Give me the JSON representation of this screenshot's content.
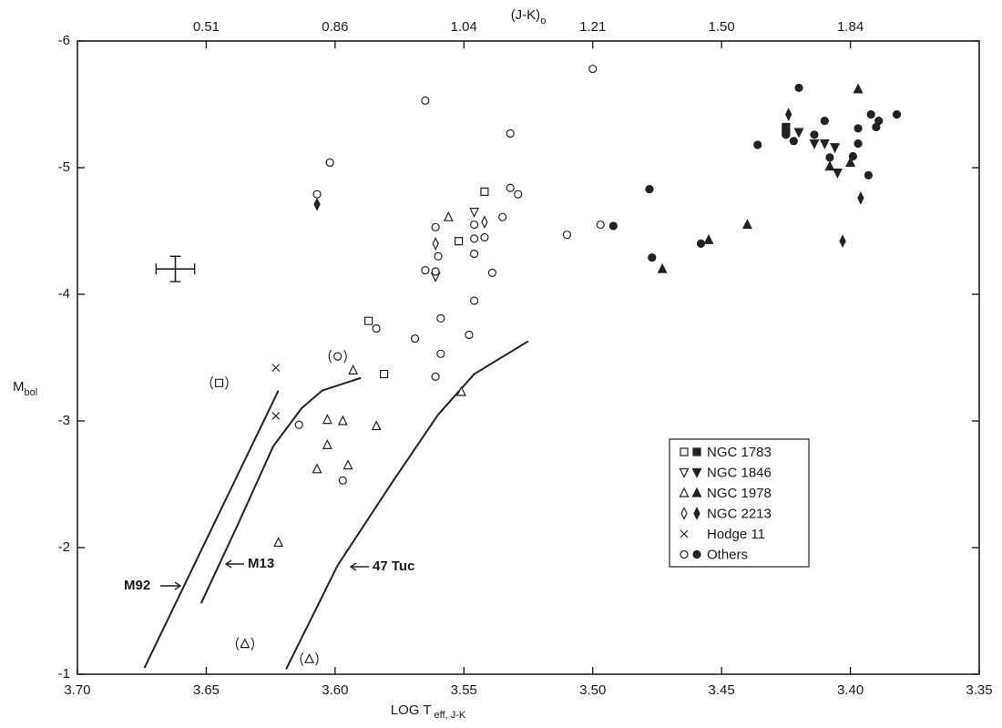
{
  "chart_data": {
    "type": "scatter",
    "top_axis_label": "(J-K)",
    "top_axis_label_sub": "o",
    "xlabel": "LOG T",
    "xlabel_sub": "eff, J-K",
    "ylabel": "M",
    "ylabel_sub": "bol",
    "xlim": [
      3.7,
      3.35
    ],
    "ylim": [
      -1,
      -6
    ],
    "xticks": [
      {
        "value": 3.7,
        "label": "3.70"
      },
      {
        "value": 3.65,
        "label": "3.65"
      },
      {
        "value": 3.6,
        "label": "3.60"
      },
      {
        "value": 3.55,
        "label": "3.55"
      },
      {
        "value": 3.5,
        "label": "3.50"
      },
      {
        "value": 3.45,
        "label": "3.45"
      },
      {
        "value": 3.4,
        "label": "3.40"
      },
      {
        "value": 3.35,
        "label": "3.35"
      }
    ],
    "x2ticks": [
      {
        "value": 3.65,
        "label": "0.51"
      },
      {
        "value": 3.6,
        "label": "0.86"
      },
      {
        "value": 3.55,
        "label": "1.04"
      },
      {
        "value": 3.5,
        "label": "1.21"
      },
      {
        "value": 3.45,
        "label": "1.50"
      },
      {
        "value": 3.4,
        "label": "1.84"
      }
    ],
    "yticks": [
      -6,
      -5,
      -4,
      -3,
      -2,
      -1
    ],
    "series": [
      {
        "name": "NGC 1783",
        "marker": "square",
        "color": "#222",
        "x": [
          3.542,
          3.552,
          3.587,
          3.581,
          3.645,
          3.425,
          3.425
        ],
        "y": [
          -4.81,
          -4.42,
          -3.79,
          -3.37,
          -3.3,
          -5.32,
          -5.28
        ],
        "filled": [
          false,
          false,
          false,
          false,
          false,
          true,
          true
        ],
        "bracketed": [
          false,
          false,
          false,
          false,
          true,
          false,
          false
        ]
      },
      {
        "name": "NGC 1846",
        "marker": "triangle-down",
        "color": "#222",
        "x": [
          3.546,
          3.561,
          3.42,
          3.414,
          3.41,
          3.406,
          3.405
        ],
        "y": [
          -4.65,
          -4.14,
          -5.28,
          -5.19,
          -5.19,
          -5.16,
          -4.96
        ],
        "filled": [
          false,
          false,
          true,
          true,
          true,
          true,
          true
        ]
      },
      {
        "name": "NGC 1978",
        "marker": "triangle",
        "color": "#222",
        "x": [
          3.556,
          3.593,
          3.603,
          3.597,
          3.584,
          3.603,
          3.595,
          3.607,
          3.622,
          3.551,
          3.635,
          3.61,
          3.397,
          3.408,
          3.455,
          3.473,
          3.44,
          3.4
        ],
        "y": [
          -4.61,
          -3.4,
          -3.01,
          -3.0,
          -2.96,
          -2.81,
          -2.65,
          -2.62,
          -2.04,
          -3.23,
          -1.24,
          -1.12,
          -5.62,
          -5.01,
          -4.43,
          -4.2,
          -4.55,
          -5.04
        ],
        "filled": [
          false,
          false,
          false,
          false,
          false,
          false,
          false,
          false,
          false,
          false,
          false,
          false,
          true,
          true,
          true,
          true,
          true,
          true
        ],
        "bracketed": [
          false,
          false,
          false,
          false,
          false,
          false,
          false,
          false,
          false,
          false,
          true,
          true,
          false,
          false,
          false,
          false,
          false,
          false
        ]
      },
      {
        "name": "NGC 2213",
        "marker": "diamond",
        "color": "#222",
        "x": [
          3.561,
          3.542,
          3.424,
          3.396,
          3.403,
          3.607
        ],
        "y": [
          -4.4,
          -4.57,
          -5.42,
          -4.76,
          -4.42,
          -4.71
        ],
        "filled": [
          false,
          false,
          true,
          true,
          true,
          true
        ]
      },
      {
        "name": "Hodge 11",
        "marker": "x",
        "color": "#222",
        "x": [
          3.623,
          3.623
        ],
        "y": [
          -3.42,
          -3.04
        ],
        "filled": [
          false,
          false
        ]
      },
      {
        "name": "Others",
        "marker": "circle",
        "color": "#222",
        "x": [
          3.5,
          3.565,
          3.602,
          3.607,
          3.532,
          3.532,
          3.529,
          3.561,
          3.535,
          3.546,
          3.542,
          3.546,
          3.497,
          3.51,
          3.56,
          3.546,
          3.565,
          3.561,
          3.539,
          3.546,
          3.559,
          3.584,
          3.569,
          3.548,
          3.559,
          3.561,
          3.614,
          3.597,
          3.599,
          3.478,
          3.492,
          3.477,
          3.458,
          3.436,
          3.42,
          3.425,
          3.422,
          3.41,
          3.414,
          3.397,
          3.392,
          3.389,
          3.382,
          3.39,
          3.393,
          3.397,
          3.399,
          3.408
        ],
        "y": [
          -5.78,
          -5.53,
          -5.04,
          -4.79,
          -5.27,
          -4.84,
          -4.79,
          -4.53,
          -4.61,
          -4.55,
          -4.45,
          -4.44,
          -4.55,
          -4.47,
          -4.3,
          -4.32,
          -4.19,
          -4.18,
          -4.17,
          -3.95,
          -3.81,
          -3.73,
          -3.65,
          -3.68,
          -3.53,
          -3.35,
          -2.97,
          -2.53,
          -3.51,
          -4.83,
          -4.54,
          -4.29,
          -4.4,
          -5.18,
          -5.63,
          -5.26,
          -5.21,
          -5.37,
          -5.26,
          -5.31,
          -5.42,
          -5.37,
          -5.42,
          -5.32,
          -4.94,
          -5.19,
          -5.09,
          -5.08
        ],
        "filled": [
          false,
          false,
          false,
          false,
          false,
          false,
          false,
          false,
          false,
          false,
          false,
          false,
          false,
          false,
          false,
          false,
          false,
          false,
          false,
          false,
          false,
          false,
          false,
          false,
          false,
          false,
          false,
          false,
          false,
          true,
          true,
          true,
          true,
          true,
          true,
          true,
          true,
          true,
          true,
          true,
          true,
          true,
          true,
          true,
          true,
          true,
          true,
          true
        ],
        "bracketed": [
          false,
          false,
          false,
          false,
          false,
          false,
          false,
          false,
          false,
          false,
          false,
          false,
          false,
          false,
          false,
          false,
          false,
          false,
          false,
          false,
          false,
          false,
          false,
          false,
          false,
          false,
          false,
          false,
          true,
          false,
          false,
          false,
          false,
          false,
          false,
          false,
          false,
          false,
          false,
          false,
          false,
          false,
          false,
          false,
          false,
          false,
          false,
          false
        ]
      }
    ],
    "curves": [
      {
        "name": "M92",
        "x": [
          3.674,
          3.622
        ],
        "y": [
          -1.05,
          -3.24
        ]
      },
      {
        "name": "M13",
        "x": [
          3.652,
          3.638,
          3.624,
          3.613,
          3.605,
          3.59
        ],
        "y": [
          -1.56,
          -2.17,
          -2.8,
          -3.1,
          -3.24,
          -3.34
        ]
      },
      {
        "name": "47 Tuc",
        "x": [
          3.619,
          3.599,
          3.578,
          3.56,
          3.546,
          3.525
        ],
        "y": [
          -1.04,
          -1.86,
          -2.51,
          -3.05,
          -3.37,
          -3.63
        ]
      }
    ],
    "error_bar": {
      "x": 3.662,
      "y": -4.2,
      "xerr": 0.0075,
      "yerr": 0.1
    }
  }
}
